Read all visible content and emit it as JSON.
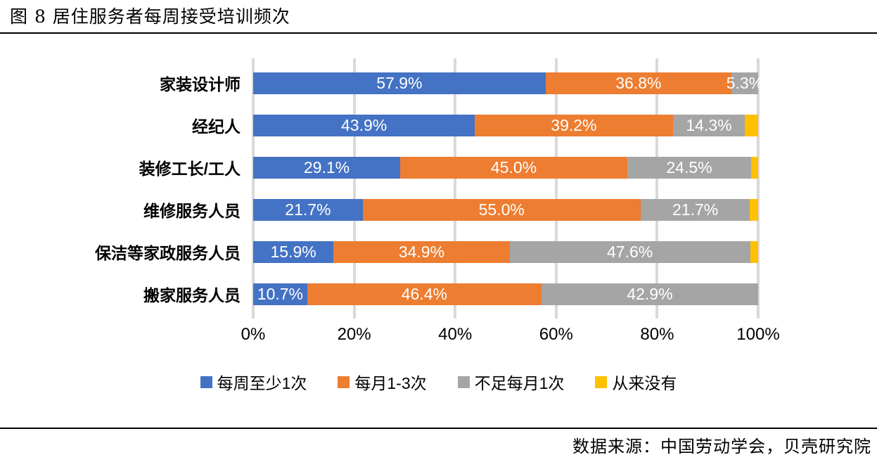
{
  "header": {
    "title": "图 8 居住服务者每周接受培训频次"
  },
  "chart_data": {
    "type": "bar",
    "subtype": "horizontal-stacked-100",
    "title": "图 8 居住服务者每周接受培训频次",
    "categories": [
      "家装设计师",
      "经纪人",
      "装修工长/工人",
      "维修服务人员",
      "保洁等家政服务人员",
      "搬家服务人员"
    ],
    "series": [
      {
        "name": "每周至少1次",
        "color": "#4472C4",
        "values": [
          57.9,
          43.9,
          29.1,
          21.7,
          15.9,
          10.7
        ],
        "labels": [
          "57.9%",
          "43.9%",
          "29.1%",
          "21.7%",
          "15.9%",
          "10.7%"
        ]
      },
      {
        "name": "每月1-3次",
        "color": "#ED7D31",
        "values": [
          36.8,
          39.2,
          45.0,
          55.0,
          34.9,
          46.4
        ],
        "labels": [
          "36.8%",
          "39.2%",
          "45.0%",
          "55.0%",
          "34.9%",
          "46.4%"
        ]
      },
      {
        "name": "不足每月1次",
        "color": "#A5A5A5",
        "values": [
          5.3,
          14.3,
          24.5,
          21.7,
          47.6,
          42.9
        ],
        "labels": [
          "5.3%",
          "14.3%",
          "24.5%",
          "21.7%",
          "47.6%",
          "42.9%"
        ]
      },
      {
        "name": "从来没有",
        "color": "#FFC000",
        "values": [
          0,
          2.6,
          1.4,
          1.6,
          1.6,
          0
        ],
        "labels": [
          "",
          "",
          "",
          "",
          "",
          ""
        ]
      }
    ],
    "x_ticks": [
      "0%",
      "20%",
      "40%",
      "60%",
      "80%",
      "100%"
    ],
    "xlim": [
      0,
      100
    ],
    "grid": true,
    "gridline_color": "#D9D9D9",
    "legend_position": "bottom",
    "label_color": "#FFFFFF"
  },
  "footer": {
    "source": "数据来源：中国劳动学会，贝壳研究院"
  }
}
